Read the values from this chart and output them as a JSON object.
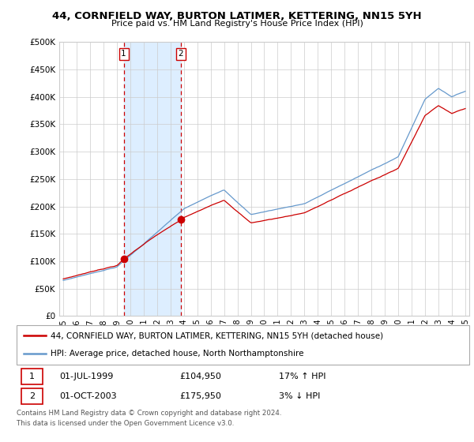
{
  "title": "44, CORNFIELD WAY, BURTON LATIMER, KETTERING, NN15 5YH",
  "subtitle": "Price paid vs. HM Land Registry's House Price Index (HPI)",
  "ylim": [
    0,
    500000
  ],
  "yticks": [
    0,
    50000,
    100000,
    150000,
    200000,
    250000,
    300000,
    350000,
    400000,
    450000,
    500000
  ],
  "ytick_labels": [
    "£0",
    "£50K",
    "£100K",
    "£150K",
    "£200K",
    "£250K",
    "£300K",
    "£350K",
    "£400K",
    "£450K",
    "£500K"
  ],
  "sale1_year": 1999.5,
  "sale1_price": 104950,
  "sale1_text": "01-JUL-1999",
  "sale1_price_text": "£104,950",
  "sale1_hpi_text": "17% ↑ HPI",
  "sale2_year": 2003.75,
  "sale2_price": 175950,
  "sale2_text": "01-OCT-2003",
  "sale2_price_text": "£175,950",
  "sale2_hpi_text": "3% ↓ HPI",
  "legend_line1": "44, CORNFIELD WAY, BURTON LATIMER, KETTERING, NN15 5YH (detached house)",
  "legend_line2": "HPI: Average price, detached house, North Northamptonshire",
  "footer": "Contains HM Land Registry data © Crown copyright and database right 2024.\nThis data is licensed under the Open Government Licence v3.0.",
  "line_color_red": "#cc0000",
  "line_color_blue": "#6699cc",
  "shade_color": "#ddeeff",
  "grid_color": "#cccccc",
  "xlim_left": 1994.7,
  "xlim_right": 2025.3
}
